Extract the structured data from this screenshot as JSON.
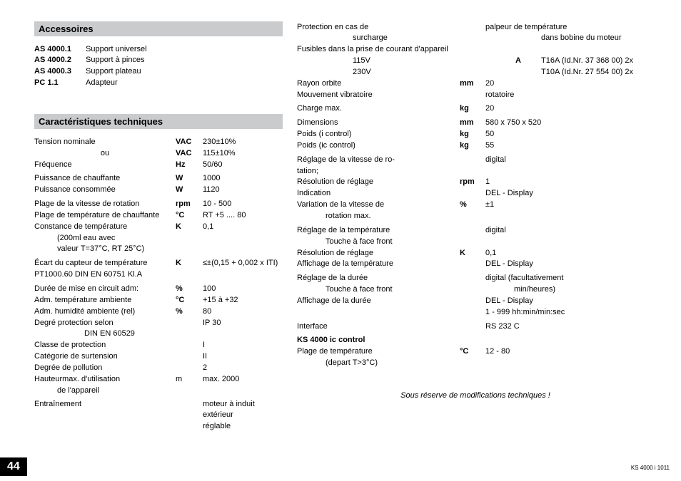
{
  "leftCol": {
    "accessHeader": "Accessoires",
    "accessories": [
      {
        "code": "AS 4000.1",
        "desc": "Support universel"
      },
      {
        "code": "AS 4000.2",
        "desc": "Support à pinces"
      },
      {
        "code": "AS 4000.3",
        "desc": "Support plateau"
      },
      {
        "code": "PC 1.1",
        "desc": "Adapteur"
      }
    ],
    "techHeader": "Caractéristiques techniques",
    "specs": [
      {
        "label": "Tension nominale",
        "unit": "VAC",
        "val": "230±10%"
      },
      {
        "label": "ou",
        "unit": "VAC",
        "val": "115±10%",
        "centerLabel": true
      },
      {
        "label": "Fréquence",
        "unit": "Hz",
        "val": "50/60"
      },
      {
        "sep": true
      },
      {
        "label": "Puissance de chauffante",
        "unit": "W",
        "val": "1000"
      },
      {
        "label": "Puissance consommée",
        "unit": "W",
        "val": "1120"
      },
      {
        "sep": true
      },
      {
        "label": "Plage de la vitesse de rotation",
        "unit": "rpm",
        "val": "10 - 500"
      },
      {
        "label": "Plage de température de chauffante",
        "unit": "°C",
        "val": "RT +5 .... 80"
      },
      {
        "label": "Constance de température",
        "unit": "K",
        "val": "0,1"
      },
      {
        "label": "(200ml eau avec",
        "indent": 1
      },
      {
        "label": "valeur T=37°C, RT 25°C)",
        "indent": 1
      },
      {
        "sep": true
      },
      {
        "label": "Écart du capteur de température",
        "unit": "K",
        "val": "≤±(0,15 + 0,002 x ITI)"
      },
      {
        "label": "PT1000.60 DIN EN 60751 Kl.A"
      },
      {
        "sep": true
      },
      {
        "label": "Durée de mise en circuit adm:",
        "unit": "%",
        "val": "100"
      },
      {
        "label": "Adm. température ambiente",
        "unit": "°C",
        "val": "+15 à +32"
      },
      {
        "label": "Adm. humidité ambiente (rel)",
        "unit": "%",
        "val": "80"
      },
      {
        "label": "Degré protection selon",
        "unit": "",
        "val": "IP 30"
      },
      {
        "label": "DIN EN 60529",
        "indent": 2
      },
      {
        "label": "Classe de protection",
        "unit": "",
        "val": "I"
      },
      {
        "label": "Catégorie de surtension",
        "unit": "",
        "val": "II"
      },
      {
        "label": "Degrée de pollution",
        "unit": "",
        "val": "2"
      },
      {
        "label": "Hauteurmax. d'utilisation",
        "unit": "m",
        "unitPlain": true,
        "val": "max. 2000"
      },
      {
        "label": "de l'appareil",
        "indent": 1
      },
      {
        "sep": true
      },
      {
        "label": "Entraînement",
        "unit": "",
        "val": "moteur à induit extérieur"
      },
      {
        "label": "",
        "unit": "",
        "val": "réglable"
      }
    ]
  },
  "rightCol": {
    "specs": [
      {
        "label": "Protection en cas de",
        "unit": "",
        "val": "palpeur de température"
      },
      {
        "label": "surcharge",
        "unit": "",
        "val": "dans bobine du moteur",
        "labelIndent": 2
      },
      {
        "label": "Fusibles dans la prise de courant d'appareil"
      },
      {
        "label": "115V",
        "unit": "A",
        "val": "T16A (Id.Nr. 37 368 00) 2x",
        "labelIndent": 2
      },
      {
        "label": "230V",
        "unit": "",
        "val": "T10A (Id.Nr. 27 554 00) 2x",
        "labelIndent": 2
      },
      {
        "label": "Rayon orbite",
        "unit": "mm",
        "val": "20"
      },
      {
        "label": "Mouvement vibratoire",
        "unit": "",
        "val": "rotatoire"
      },
      {
        "sep": true
      },
      {
        "label": "Charge max.",
        "unit": "kg",
        "val": "20"
      },
      {
        "sep": true
      },
      {
        "label": "Dimensions",
        "unit": "mm",
        "val": "580 x 750 x 520"
      },
      {
        "label": "Poids   (i control)",
        "unit": "kg",
        "val": "50"
      },
      {
        "label": "Poids   (ic control)",
        "unit": "kg",
        "val": "55"
      },
      {
        "sep": true
      },
      {
        "label": "Réglage de la vitesse de ro-",
        "unit": "",
        "val": "digital"
      },
      {
        "label": "tation;"
      },
      {
        "label": "Résolution de réglage",
        "unit": "rpm",
        "val": "1"
      },
      {
        "label": "Indication",
        "unit": "",
        "val": "DEL - Display"
      },
      {
        "label": "Variation de la vitesse de",
        "unit": "%",
        "val": "±1"
      },
      {
        "label": "rotation max.",
        "labelIndent": 1
      },
      {
        "sep": true
      },
      {
        "label": "Réglage de la température",
        "unit": "",
        "val": "digital"
      },
      {
        "label": "Touche à face front",
        "labelIndent": 1
      },
      {
        "label": "Résolution de réglage",
        "unit": "K",
        "val": "0,1"
      },
      {
        "label": "Affichage de la température",
        "unit": "",
        "val": "DEL - Display"
      },
      {
        "sep": true
      },
      {
        "label": "Réglage de la durée",
        "unit": "",
        "val": "digital (facultativement"
      },
      {
        "label": "Touche à face front",
        "unit": "",
        "val": "min/heures)",
        "labelIndent": 1
      },
      {
        "label": "Affichage de la durée",
        "unit": "",
        "val": "DEL - Display"
      },
      {
        "label": "",
        "unit": "",
        "val": "1 - 999 hh:min/min:sec"
      },
      {
        "sep": true
      },
      {
        "label": "Interface",
        "unit": "",
        "val": "RS 232 C"
      },
      {
        "sep": true
      },
      {
        "label": "KS 4000 ic control",
        "bold": true
      },
      {
        "label": "Plage de température",
        "unit": "°C",
        "val": "12 - 80"
      },
      {
        "label": "(depart T>3°C)",
        "labelIndent": 1
      }
    ],
    "footnote": "Sous réserve de modifications techniques !"
  },
  "pageNumber": "44",
  "docId": "KS 4000 i 1011"
}
